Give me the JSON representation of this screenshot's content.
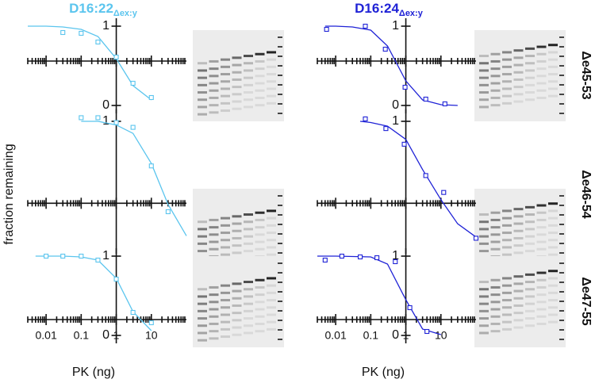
{
  "titles": [
    {
      "text": "D16:22",
      "subscript": "Δex:y",
      "color": "#5bc5ee"
    },
    {
      "text": "D16:24",
      "subscript": "Δex:y",
      "color": "#1f22d6"
    }
  ],
  "row_labels": [
    "Δe45-53",
    "Δe46-54",
    "Δe47-55"
  ],
  "ylabel": "fraction remaining",
  "xlabel": "PK  (ng)",
  "chart_data": [
    {
      "type": "scatter",
      "color": "#5bc5ee",
      "log_x": true,
      "xlim": [
        0.003,
        100
      ],
      "ylim": [
        -0.1,
        1.1
      ],
      "xticks": [
        0.01,
        0.1,
        1,
        10
      ],
      "xtick_labels": false,
      "yticks": [
        0,
        1
      ],
      "x_axis_crossing": 0.56,
      "y_axis_crossing": 1,
      "points": {
        "x": [
          0.03,
          0.1,
          0.3,
          1,
          3,
          10
        ],
        "values": [
          0.92,
          0.91,
          0.8,
          0.61,
          0.28,
          0.1
        ]
      },
      "fit": {
        "x": [
          0.003,
          0.01,
          0.03,
          0.1,
          0.3,
          1,
          3,
          10
        ],
        "values": [
          1,
          1,
          0.99,
          0.96,
          0.87,
          0.59,
          0.25,
          0.07
        ]
      }
    },
    {
      "type": "scatter",
      "color": "#1f22d6",
      "log_x": true,
      "xlim": [
        0.003,
        100
      ],
      "ylim": [
        -0.1,
        1.1
      ],
      "xticks": [
        0.01,
        0.1,
        1,
        10
      ],
      "xtick_labels": false,
      "yticks": [
        0,
        1
      ],
      "x_axis_crossing": 0.56,
      "y_axis_crossing": 1,
      "points": {
        "x": [
          0.0055,
          0.07,
          0.26,
          0.95,
          3.7,
          13
        ],
        "values": [
          0.96,
          1,
          0.71,
          0.23,
          0.08,
          0.02
        ]
      },
      "fit": {
        "x": [
          0.005,
          0.01,
          0.03,
          0.1,
          0.3,
          1,
          3,
          10,
          30
        ],
        "values": [
          1,
          1,
          0.99,
          0.95,
          0.75,
          0.31,
          0.07,
          0.01,
          0
        ]
      }
    },
    {
      "type": "scatter",
      "color": "#5bc5ee",
      "log_x": true,
      "xlim": [
        0.003,
        100
      ],
      "ylim": [
        -0.1,
        1.1
      ],
      "xticks": [
        0.01,
        0.1,
        1,
        10
      ],
      "xtick_labels": false,
      "yticks": [
        1
      ],
      "x_axis_crossing": 0.32,
      "y_axis_crossing": 1,
      "points": {
        "x": [
          0.1,
          0.3,
          1,
          3,
          10,
          30
        ],
        "values": [
          1.03,
          1.03,
          0.99,
          0.95,
          0.63,
          0.25
        ]
      },
      "fit": {
        "x": [
          0.1,
          0.3,
          1,
          3,
          10,
          30,
          100
        ],
        "values": [
          1,
          1,
          0.97,
          0.9,
          0.65,
          0.31,
          0.05
        ]
      }
    },
    {
      "type": "scatter",
      "color": "#1f22d6",
      "log_x": true,
      "xlim": [
        0.003,
        100
      ],
      "ylim": [
        -0.1,
        1.1
      ],
      "xticks": [
        0.01,
        0.1,
        1,
        10
      ],
      "xtick_labels": false,
      "yticks": [
        1
      ],
      "x_axis_crossing": 0.32,
      "y_axis_crossing": 1,
      "points": {
        "x": [
          0.07,
          0.27,
          0.9,
          3.7,
          12,
          100
        ],
        "values": [
          1.02,
          0.94,
          0.81,
          0.55,
          0.41,
          0.03
        ]
      },
      "fit": {
        "x": [
          0.05,
          0.1,
          0.3,
          1,
          3,
          10,
          30,
          100
        ],
        "values": [
          1,
          0.99,
          0.96,
          0.85,
          0.6,
          0.35,
          0.15,
          0.04
        ]
      }
    },
    {
      "type": "scatter",
      "color": "#5bc5ee",
      "log_x": true,
      "xlim": [
        0.003,
        100
      ],
      "ylim": [
        -0.1,
        1.1
      ],
      "xticks": [
        0.01,
        0.1,
        1,
        10
      ],
      "xtick_labels": true,
      "yticks": [
        0,
        1
      ],
      "x_axis_crossing": 0.2,
      "y_axis_crossing": 1,
      "points": {
        "x": [
          0.01,
          0.03,
          0.1,
          0.3,
          1,
          3,
          10
        ],
        "values": [
          1,
          1,
          1,
          0.95,
          0.71,
          0.29,
          0.16
        ]
      },
      "fit": {
        "x": [
          0.005,
          0.01,
          0.03,
          0.1,
          0.3,
          1,
          3,
          10
        ],
        "values": [
          1,
          1,
          1,
          0.99,
          0.95,
          0.72,
          0.3,
          0.06
        ]
      }
    },
    {
      "type": "scatter",
      "color": "#1f22d6",
      "log_x": true,
      "xlim": [
        0.003,
        100
      ],
      "ylim": [
        -0.1,
        1.1
      ],
      "xticks": [
        0.01,
        0.1,
        1,
        10
      ],
      "xtick_labels": true,
      "yticks": [
        0,
        1
      ],
      "x_axis_crossing": 0.2,
      "y_axis_crossing": 1,
      "points": {
        "x": [
          0.005,
          0.015,
          0.05,
          0.15,
          0.5,
          1.3,
          4
        ],
        "values": [
          0.95,
          1,
          0.99,
          0.98,
          0.93,
          0.35,
          0.05
        ]
      },
      "fit": {
        "x": [
          0.003,
          0.01,
          0.1,
          0.3,
          1,
          3,
          10
        ],
        "values": [
          1,
          1,
          0.99,
          0.9,
          0.45,
          0.08,
          0.01
        ]
      }
    }
  ]
}
